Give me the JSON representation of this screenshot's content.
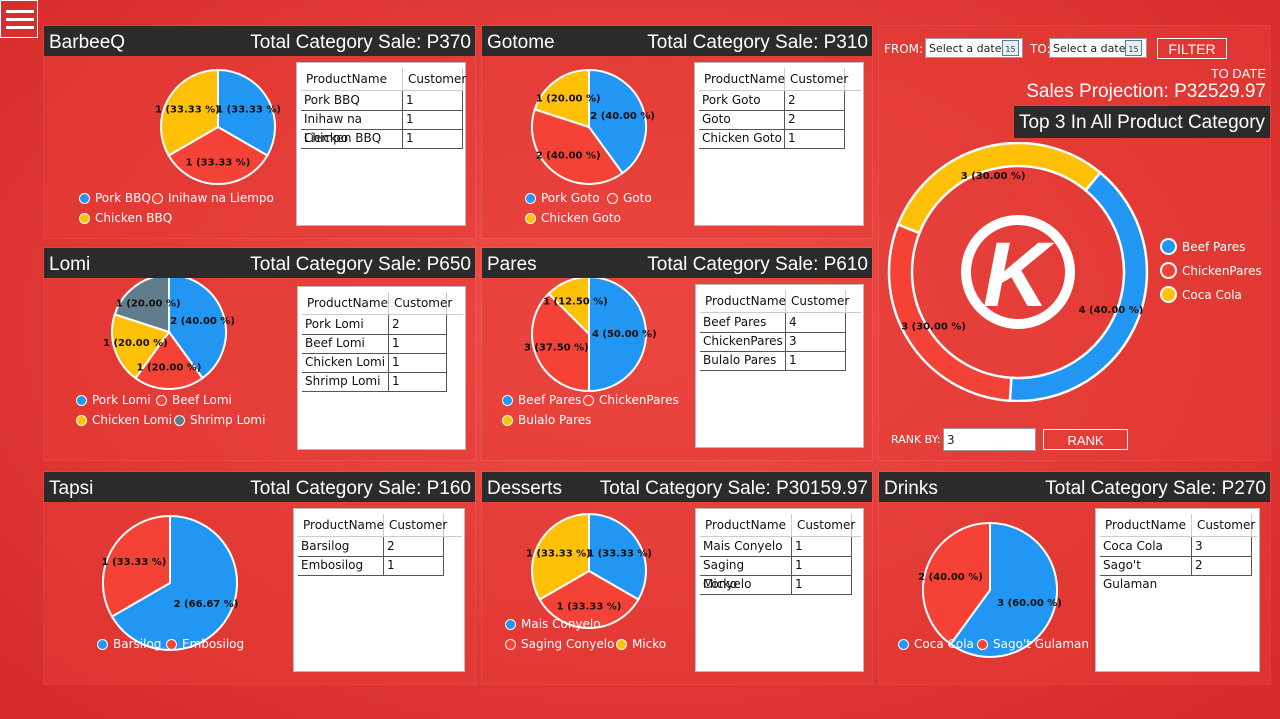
{
  "menu_icon": "hamburger-menu-icon",
  "colors": {
    "blue": "#2196F3",
    "red": "#F44336",
    "yellow": "#FFC107",
    "gray": "#607D8B",
    "header": "#2b2b2b"
  },
  "categories": [
    {
      "id": "barbeeq",
      "name": "BarbeeQ",
      "total": "Total Category Sale: P370",
      "columns": [
        "ProductName",
        "Customer"
      ],
      "rows": [
        [
          "Pork BBQ",
          "1"
        ],
        [
          "Inihaw na Liempo",
          "1"
        ],
        [
          "Chicken BBQ",
          "1"
        ]
      ],
      "chart_data": {
        "type": "pie",
        "slices": [
          {
            "name": "Pork BBQ",
            "value": 1,
            "label": "1 (33.33 %)",
            "color": "#2196F3"
          },
          {
            "name": "Inihaw na Liempo",
            "value": 1,
            "label": "1 (33.33 %)",
            "color": "#F44336"
          },
          {
            "name": "Chicken BBQ",
            "value": 1,
            "label": "1 (33.33 %)",
            "color": "#FFC107"
          }
        ]
      }
    },
    {
      "id": "gotome",
      "name": "Gotome",
      "total": "Total Category Sale: P310",
      "columns": [
        "ProductName",
        "Customer"
      ],
      "rows": [
        [
          "Pork Goto",
          "2"
        ],
        [
          "Goto",
          "2"
        ],
        [
          "Chicken Goto",
          "1"
        ]
      ],
      "chart_data": {
        "type": "pie",
        "slices": [
          {
            "name": "Pork Goto",
            "value": 2,
            "label": "2 (40.00 %)",
            "color": "#2196F3"
          },
          {
            "name": "Goto",
            "value": 2,
            "label": "2 (40.00 %)",
            "color": "#F44336"
          },
          {
            "name": "Chicken Goto",
            "value": 1,
            "label": "1 (20.00 %)",
            "color": "#FFC107"
          }
        ]
      }
    },
    {
      "id": "lomi",
      "name": "Lomi",
      "total": "Total Category Sale: P650",
      "columns": [
        "ProductName",
        "Customer"
      ],
      "rows": [
        [
          "Pork Lomi",
          "2"
        ],
        [
          "Beef Lomi",
          "1"
        ],
        [
          "Chicken Lomi",
          "1"
        ],
        [
          "Shrimp Lomi",
          "1"
        ]
      ],
      "chart_data": {
        "type": "pie",
        "slices": [
          {
            "name": "Pork Lomi",
            "value": 2,
            "label": "2 (40.00 %)",
            "color": "#2196F3"
          },
          {
            "name": "Beef Lomi",
            "value": 1,
            "label": "1 (20.00 %)",
            "color": "#F44336"
          },
          {
            "name": "Chicken Lomi",
            "value": 1,
            "label": "1 (20.00 %)",
            "color": "#FFC107"
          },
          {
            "name": "Shrimp Lomi",
            "value": 1,
            "label": "1 (20.00 %)",
            "color": "#607D8B"
          }
        ]
      }
    },
    {
      "id": "pares",
      "name": "Pares",
      "total": "Total Category Sale: P610",
      "columns": [
        "ProductName",
        "Customer"
      ],
      "rows": [
        [
          "Beef Pares",
          "4"
        ],
        [
          "ChickenPares",
          "3"
        ],
        [
          "Bulalo Pares",
          "1"
        ]
      ],
      "chart_data": {
        "type": "pie",
        "slices": [
          {
            "name": "Beef Pares",
            "value": 4,
            "label": "4 (50.00 %)",
            "color": "#2196F3"
          },
          {
            "name": "ChickenPares",
            "value": 3,
            "label": "3 (37.50 %)",
            "color": "#F44336"
          },
          {
            "name": "Bulalo Pares",
            "value": 1,
            "label": "1 (12.50 %)",
            "color": "#FFC107"
          }
        ]
      }
    },
    {
      "id": "tapsi",
      "name": "Tapsi",
      "total": "Total Category Sale: P160",
      "columns": [
        "ProductName",
        "Customer"
      ],
      "rows": [
        [
          "Barsilog",
          "2"
        ],
        [
          "Embosilog",
          "1"
        ]
      ],
      "chart_data": {
        "type": "pie",
        "slices": [
          {
            "name": "Barsilog",
            "value": 2,
            "label": "2 (66.67 %)",
            "color": "#2196F3"
          },
          {
            "name": "Embosilog",
            "value": 1,
            "label": "1 (33.33 %)",
            "color": "#F44336"
          }
        ]
      }
    },
    {
      "id": "desserts",
      "name": "Desserts",
      "total": "Total Category Sale: P30159.97",
      "columns": [
        "ProductName",
        "Customer"
      ],
      "rows": [
        [
          "Mais Conyelo",
          "1"
        ],
        [
          "Saging Conyelo",
          "1"
        ],
        [
          "Micko",
          "1"
        ]
      ],
      "chart_data": {
        "type": "pie",
        "slices": [
          {
            "name": "Mais Conyelo",
            "value": 1,
            "label": "1 (33.33 %)",
            "color": "#2196F3"
          },
          {
            "name": "Saging Conyelo",
            "value": 1,
            "label": "1 (33.33 %)",
            "color": "#F44336"
          },
          {
            "name": "Micko",
            "value": 1,
            "label": "1 (33.33 %)",
            "color": "#FFC107"
          }
        ]
      }
    },
    {
      "id": "drinks",
      "name": "Drinks",
      "total": "Total Category Sale: P270",
      "columns": [
        "ProductName",
        "Customer"
      ],
      "rows": [
        [
          "Coca Cola",
          "3"
        ],
        [
          "Sago't Gulaman",
          "2"
        ]
      ],
      "chart_data": {
        "type": "pie",
        "slices": [
          {
            "name": "Coca Cola",
            "value": 3,
            "label": "3 (60.00 %)",
            "color": "#2196F3"
          },
          {
            "name": "Sago't Gulaman",
            "value": 2,
            "label": "2 (40.00 %)",
            "color": "#F44336"
          }
        ]
      }
    }
  ],
  "filter": {
    "from_label": "FROM:",
    "to_label": "TO:",
    "from_placeholder": "Select a date",
    "to_placeholder": "Select a date",
    "calendar_day": "15",
    "filter_button": "FILTER",
    "to_date_label": "TO DATE",
    "projection": "Sales Projection: P32529.97"
  },
  "top3": {
    "title": "Top 3 In All Product Category",
    "logo_letter": "K",
    "rank_label": "RANK BY:",
    "rank_value": "3",
    "rank_button": "RANK",
    "chart_data": {
      "type": "pie",
      "slices": [
        {
          "name": "Beef Pares",
          "value": 4,
          "label": "4 (40.00 %)",
          "color": "#2196F3"
        },
        {
          "name": "ChickenPares",
          "value": 3,
          "label": "3 (30.00 %)",
          "color": "#F44336"
        },
        {
          "name": "Coca Cola",
          "value": 3,
          "label": "3 (30.00 %)",
          "color": "#FFC107"
        }
      ]
    }
  }
}
